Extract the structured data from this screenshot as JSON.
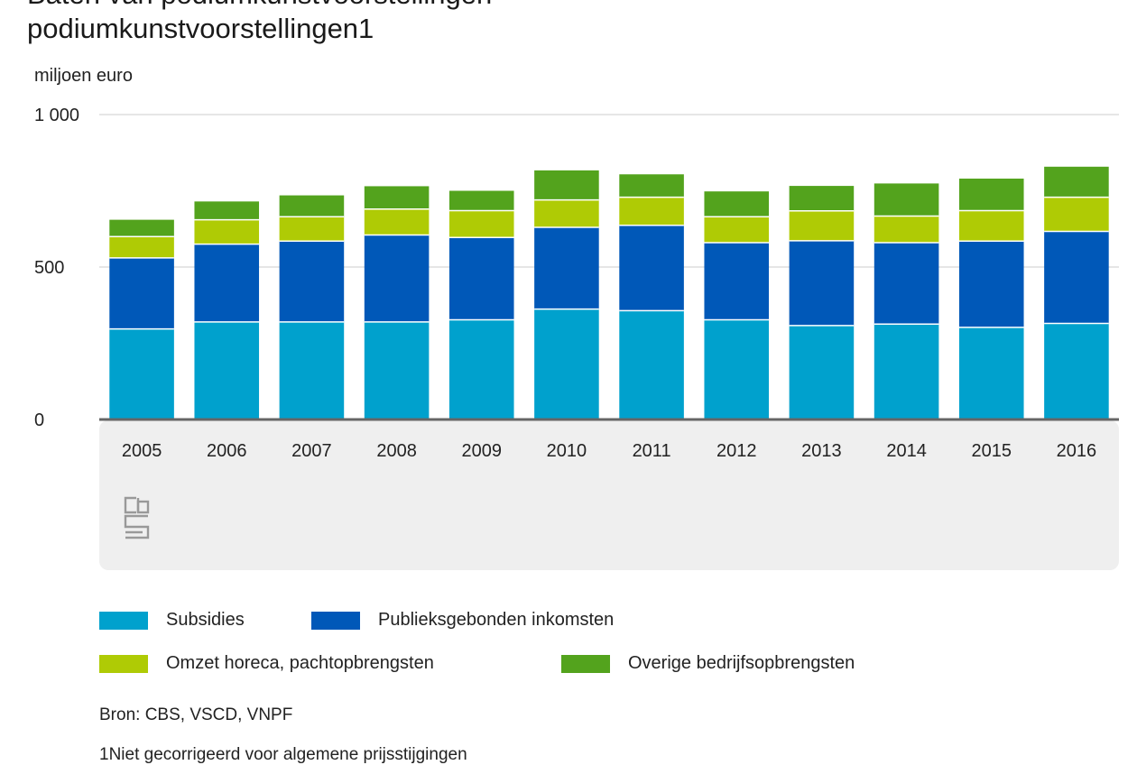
{
  "title_partial": "Baten van podiumkunstvoorstellingen",
  "title_line": "podiumkunstvoorstellingen1",
  "chart_data": {
    "type": "bar",
    "stacked": true,
    "ylabel": "miljoen euro",
    "ylim": [
      0,
      1000
    ],
    "yticks": [
      0,
      500,
      1000
    ],
    "ytick_labels": [
      "0",
      "500",
      "1 000"
    ],
    "grid": true,
    "categories": [
      "2005",
      "2006",
      "2007",
      "2008",
      "2009",
      "2010",
      "2011",
      "2012",
      "2013",
      "2014",
      "2015",
      "2016"
    ],
    "series": [
      {
        "name": "Subsidies",
        "color": "#00a1cd",
        "values": [
          297,
          320,
          320,
          320,
          327,
          362,
          357,
          327,
          308,
          313,
          302,
          315
        ]
      },
      {
        "name": "Publieksgebonden inkomsten",
        "color": "#0058b8",
        "values": [
          233,
          255,
          265,
          285,
          270,
          268,
          280,
          253,
          278,
          267,
          283,
          302
        ]
      },
      {
        "name": "Omzet horeca, pachtopbrengsten",
        "color": "#afcb05",
        "values": [
          70,
          80,
          80,
          85,
          88,
          90,
          92,
          85,
          98,
          87,
          100,
          112
        ]
      },
      {
        "name": "Overige bedrijfsopbrengsten",
        "color": "#53a31d",
        "values": [
          55,
          60,
          70,
          75,
          65,
          97,
          75,
          83,
          82,
          107,
          105,
          100
        ]
      }
    ],
    "legend_position": "bottom"
  },
  "source": "Bron: CBS, VSCD, VNPF",
  "note": "1Niet gecorrigeerd voor algemene prijsstijgingen",
  "colors": {
    "gridline": "#cccccc",
    "axis": "#666666",
    "logo_panel": "#efefef",
    "logo": "#999999"
  },
  "logo": {
    "icon": "cbs-logo-icon"
  }
}
